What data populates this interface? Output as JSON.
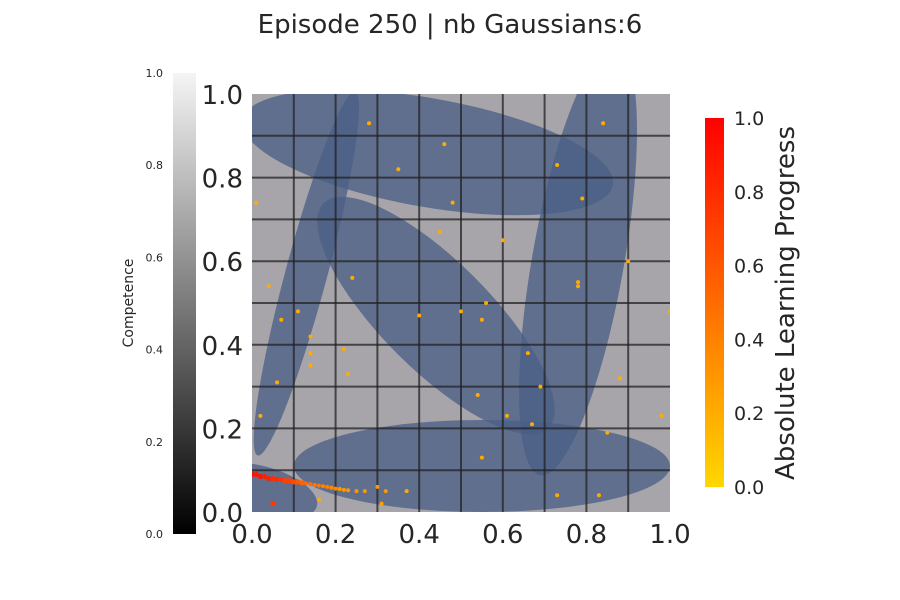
{
  "chart_data": {
    "type": "scatter",
    "title": "Episode 250 | nb Gaussians:6",
    "xlim": [
      0.0,
      1.0
    ],
    "ylim": [
      0.0,
      1.0
    ],
    "xticks": [
      "0.0",
      "0.2",
      "0.4",
      "0.6",
      "0.8",
      "1.0"
    ],
    "yticks": [
      "0.0",
      "0.2",
      "0.4",
      "0.6",
      "0.8",
      "1.0"
    ],
    "grid": true,
    "gaussians": [
      {
        "cx": 0.42,
        "cy": 0.86,
        "rx": 0.45,
        "ry": 0.13,
        "angle": -10
      },
      {
        "cx": 0.78,
        "cy": 0.6,
        "rx": 0.52,
        "ry": 0.11,
        "angle": 80
      },
      {
        "cx": 0.44,
        "cy": 0.47,
        "rx": 0.38,
        "ry": 0.13,
        "angle": -45
      },
      {
        "cx": 0.13,
        "cy": 0.57,
        "rx": 0.45,
        "ry": 0.05,
        "angle": 75
      },
      {
        "cx": 0.55,
        "cy": 0.11,
        "rx": 0.45,
        "ry": 0.11,
        "angle": 0
      },
      {
        "cx": 0.02,
        "cy": 0.05,
        "rx": 0.14,
        "ry": 0.06,
        "angle": -15
      }
    ],
    "points": [
      {
        "x": 0.28,
        "y": 0.93,
        "alp": 0.2
      },
      {
        "x": 0.84,
        "y": 0.93,
        "alp": 0.2
      },
      {
        "x": 0.46,
        "y": 0.88,
        "alp": 0.2
      },
      {
        "x": 0.73,
        "y": 0.83,
        "alp": 0.2
      },
      {
        "x": 0.35,
        "y": 0.82,
        "alp": 0.2
      },
      {
        "x": 0.79,
        "y": 0.75,
        "alp": 0.2
      },
      {
        "x": 0.01,
        "y": 0.74,
        "alp": 0.2
      },
      {
        "x": 0.48,
        "y": 0.74,
        "alp": 0.2
      },
      {
        "x": 0.45,
        "y": 0.67,
        "alp": 0.2
      },
      {
        "x": 0.6,
        "y": 0.65,
        "alp": 0.2
      },
      {
        "x": 0.9,
        "y": 0.6,
        "alp": 0.2
      },
      {
        "x": 0.24,
        "y": 0.56,
        "alp": 0.2
      },
      {
        "x": 0.78,
        "y": 0.55,
        "alp": 0.2
      },
      {
        "x": 0.78,
        "y": 0.54,
        "alp": 0.2
      },
      {
        "x": 0.04,
        "y": 0.54,
        "alp": 0.2
      },
      {
        "x": 0.56,
        "y": 0.5,
        "alp": 0.2
      },
      {
        "x": 1.0,
        "y": 0.48,
        "alp": 0.2
      },
      {
        "x": 0.11,
        "y": 0.48,
        "alp": 0.2
      },
      {
        "x": 0.5,
        "y": 0.48,
        "alp": 0.2
      },
      {
        "x": 0.4,
        "y": 0.47,
        "alp": 0.2
      },
      {
        "x": 0.07,
        "y": 0.46,
        "alp": 0.2
      },
      {
        "x": 0.55,
        "y": 0.46,
        "alp": 0.2
      },
      {
        "x": 0.14,
        "y": 0.42,
        "alp": 0.2
      },
      {
        "x": 0.22,
        "y": 0.39,
        "alp": 0.2
      },
      {
        "x": 0.14,
        "y": 0.38,
        "alp": 0.2
      },
      {
        "x": 0.66,
        "y": 0.38,
        "alp": 0.2
      },
      {
        "x": 0.14,
        "y": 0.35,
        "alp": 0.2
      },
      {
        "x": 0.23,
        "y": 0.33,
        "alp": 0.2
      },
      {
        "x": 0.88,
        "y": 0.32,
        "alp": 0.2
      },
      {
        "x": 0.06,
        "y": 0.31,
        "alp": 0.2
      },
      {
        "x": 0.69,
        "y": 0.3,
        "alp": 0.2
      },
      {
        "x": 0.54,
        "y": 0.28,
        "alp": 0.2
      },
      {
        "x": 0.02,
        "y": 0.23,
        "alp": 0.2
      },
      {
        "x": 0.61,
        "y": 0.23,
        "alp": 0.2
      },
      {
        "x": 0.98,
        "y": 0.23,
        "alp": 0.2
      },
      {
        "x": 0.67,
        "y": 0.21,
        "alp": 0.2
      },
      {
        "x": 0.85,
        "y": 0.19,
        "alp": 0.2
      },
      {
        "x": 0.55,
        "y": 0.13,
        "alp": 0.2
      },
      {
        "x": 0.37,
        "y": 0.05,
        "alp": 0.2
      },
      {
        "x": 0.73,
        "y": 0.04,
        "alp": 0.2
      },
      {
        "x": 0.83,
        "y": 0.04,
        "alp": 0.2
      },
      {
        "x": 0.16,
        "y": 0.03,
        "alp": 0.2
      },
      {
        "x": 0.31,
        "y": 0.02,
        "alp": 0.25
      },
      {
        "x": 0.32,
        "y": 0.05,
        "alp": 0.3
      },
      {
        "x": 0.3,
        "y": 0.06,
        "alp": 0.3
      },
      {
        "x": 0.0,
        "y": 0.09,
        "alp": 0.95
      },
      {
        "x": 0.01,
        "y": 0.09,
        "alp": 0.9
      },
      {
        "x": 0.02,
        "y": 0.085,
        "alp": 0.9
      },
      {
        "x": 0.03,
        "y": 0.085,
        "alp": 0.85
      },
      {
        "x": 0.04,
        "y": 0.08,
        "alp": 0.85
      },
      {
        "x": 0.05,
        "y": 0.08,
        "alp": 0.8
      },
      {
        "x": 0.06,
        "y": 0.078,
        "alp": 0.8
      },
      {
        "x": 0.07,
        "y": 0.078,
        "alp": 0.75
      },
      {
        "x": 0.08,
        "y": 0.075,
        "alp": 0.7
      },
      {
        "x": 0.09,
        "y": 0.075,
        "alp": 0.7
      },
      {
        "x": 0.1,
        "y": 0.072,
        "alp": 0.65
      },
      {
        "x": 0.11,
        "y": 0.072,
        "alp": 0.6
      },
      {
        "x": 0.12,
        "y": 0.07,
        "alp": 0.55
      },
      {
        "x": 0.13,
        "y": 0.068,
        "alp": 0.5
      },
      {
        "x": 0.14,
        "y": 0.067,
        "alp": 0.5
      },
      {
        "x": 0.15,
        "y": 0.065,
        "alp": 0.45
      },
      {
        "x": 0.16,
        "y": 0.063,
        "alp": 0.45
      },
      {
        "x": 0.17,
        "y": 0.062,
        "alp": 0.4
      },
      {
        "x": 0.18,
        "y": 0.06,
        "alp": 0.4
      },
      {
        "x": 0.19,
        "y": 0.058,
        "alp": 0.35
      },
      {
        "x": 0.2,
        "y": 0.056,
        "alp": 0.35
      },
      {
        "x": 0.21,
        "y": 0.055,
        "alp": 0.3
      },
      {
        "x": 0.22,
        "y": 0.053,
        "alp": 0.3
      },
      {
        "x": 0.23,
        "y": 0.052,
        "alp": 0.3
      },
      {
        "x": 0.25,
        "y": 0.05,
        "alp": 0.3
      },
      {
        "x": 0.27,
        "y": 0.05,
        "alp": 0.3
      },
      {
        "x": 0.05,
        "y": 0.02,
        "alp": 0.75
      }
    ],
    "competence_colorbar": {
      "label": "Competence",
      "ticks": [
        "0.0",
        "0.2",
        "0.4",
        "0.6",
        "0.8",
        "1.0"
      ]
    },
    "alp_colorbar": {
      "label": "Absolute Learning Progress",
      "ticks": [
        "0.0",
        "0.2",
        "0.4",
        "0.6",
        "0.8",
        "1.0"
      ],
      "colors": [
        "#ffd700",
        "#ff0000"
      ]
    },
    "colors": {
      "gaussian_fill": "#4a5e85",
      "background_gray": "#a7a5aa",
      "grid": "#222222"
    }
  }
}
